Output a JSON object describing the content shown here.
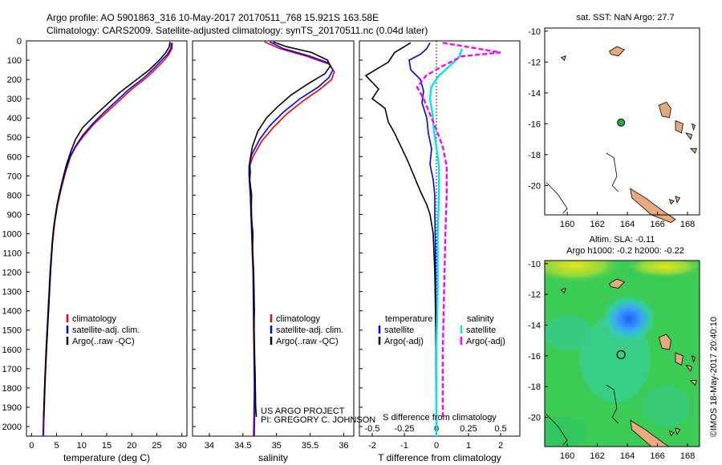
{
  "header": {
    "line1": "Argo profile: AO 5901863_316 10-May-2017 20170511_768 15.921S 163.58E",
    "line2": "Climatology: CARS2009. Satellite-adjusted climatology: synTS_20170511.nc (0.04d later)"
  },
  "colors": {
    "climatology": "#ff0000",
    "satellite": "#0000ff",
    "argo": "#000000",
    "sal_sat": "#00e5ee",
    "sal_argo": "#ff00ff",
    "land": "#e8a97e",
    "argo_marker": "#22aa44"
  },
  "chart_data": [
    {
      "type": "line",
      "id": "temperature",
      "xlabel": "temperature (deg C)",
      "ylabel": "",
      "xlim": [
        -1,
        31
      ],
      "ylim": [
        2050,
        0
      ],
      "xticks": [
        0,
        5,
        10,
        15,
        20,
        25,
        30
      ],
      "yticks": [
        0,
        100,
        200,
        300,
        400,
        500,
        600,
        700,
        800,
        900,
        1000,
        1100,
        1200,
        1300,
        1400,
        1500,
        1600,
        1700,
        1800,
        1900,
        2000
      ],
      "legend": [
        "climatology",
        "satellite-adj. clim.",
        "Argo(..raw -QC)"
      ],
      "series": [
        {
          "name": "climatology",
          "color": "#ff0000",
          "points": [
            [
              28.1,
              10
            ],
            [
              28.0,
              40
            ],
            [
              27.4,
              70
            ],
            [
              26.5,
              100
            ],
            [
              25.0,
              140
            ],
            [
              23.0,
              190
            ],
            [
              20.0,
              250
            ],
            [
              17.5,
              310
            ],
            [
              15.0,
              370
            ],
            [
              12.5,
              430
            ],
            [
              10.5,
              490
            ],
            [
              8.8,
              550
            ],
            [
              7.8,
              600
            ],
            [
              6.8,
              680
            ],
            [
              6.0,
              760
            ],
            [
              5.2,
              850
            ],
            [
              4.6,
              950
            ],
            [
              4.2,
              1050
            ],
            [
              3.8,
              1200
            ],
            [
              3.4,
              1400
            ],
            [
              3.0,
              1600
            ],
            [
              2.7,
              1800
            ],
            [
              2.5,
              1950
            ],
            [
              2.4,
              2050
            ]
          ]
        },
        {
          "name": "satellite-adj. clim.",
          "color": "#0000ff",
          "points": [
            [
              27.9,
              10
            ],
            [
              27.8,
              40
            ],
            [
              27.1,
              70
            ],
            [
              26.0,
              100
            ],
            [
              24.5,
              140
            ],
            [
              22.5,
              190
            ],
            [
              19.5,
              250
            ],
            [
              17.0,
              310
            ],
            [
              14.5,
              370
            ],
            [
              12.2,
              430
            ],
            [
              10.2,
              490
            ],
            [
              8.7,
              550
            ],
            [
              7.7,
              600
            ],
            [
              6.7,
              680
            ],
            [
              5.9,
              760
            ],
            [
              5.1,
              850
            ],
            [
              4.5,
              950
            ],
            [
              4.1,
              1050
            ],
            [
              3.7,
              1200
            ],
            [
              3.3,
              1400
            ],
            [
              2.9,
              1600
            ],
            [
              2.6,
              1800
            ],
            [
              2.4,
              1950
            ],
            [
              2.3,
              2050
            ]
          ]
        },
        {
          "name": "Argo(..raw -QC)",
          "color": "#000000",
          "points": [
            [
              27.6,
              5
            ],
            [
              27.5,
              30
            ],
            [
              26.8,
              60
            ],
            [
              25.5,
              100
            ],
            [
              23.5,
              150
            ],
            [
              20.5,
              210
            ],
            [
              17.5,
              270
            ],
            [
              15.0,
              330
            ],
            [
              12.5,
              390
            ],
            [
              10.2,
              450
            ],
            [
              8.8,
              510
            ],
            [
              7.9,
              570
            ],
            [
              7.0,
              640
            ],
            [
              6.2,
              720
            ],
            [
              5.4,
              810
            ],
            [
              4.8,
              900
            ],
            [
              4.3,
              1000
            ],
            [
              3.9,
              1150
            ],
            [
              3.5,
              1350
            ],
            [
              3.1,
              1550
            ],
            [
              2.7,
              1750
            ],
            [
              2.5,
              1900
            ],
            [
              2.4,
              1950
            ]
          ]
        }
      ]
    },
    {
      "type": "line",
      "id": "salinity",
      "xlabel": "salinity",
      "xlim": [
        33.75,
        36.15
      ],
      "ylim": [
        2050,
        0
      ],
      "xticks": [
        34,
        34.5,
        35,
        35.5,
        36
      ],
      "legend": [
        "climatology",
        "satellite-adj. clim.",
        "Argo(..raw -QC)"
      ],
      "series": [
        {
          "name": "climatology",
          "color": "#ff0000",
          "points": [
            [
              34.82,
              5
            ],
            [
              35.05,
              40
            ],
            [
              35.45,
              80
            ],
            [
              35.78,
              120
            ],
            [
              35.86,
              160
            ],
            [
              35.82,
              200
            ],
            [
              35.65,
              250
            ],
            [
              35.4,
              310
            ],
            [
              35.15,
              380
            ],
            [
              34.95,
              450
            ],
            [
              34.78,
              520
            ],
            [
              34.65,
              600
            ],
            [
              34.6,
              650
            ],
            [
              34.6,
              700
            ],
            [
              34.62,
              800
            ],
            [
              34.64,
              1000
            ],
            [
              34.66,
              1200
            ],
            [
              34.67,
              1500
            ],
            [
              34.68,
              1800
            ],
            [
              34.67,
              2050
            ]
          ]
        },
        {
          "name": "satellite-adj. clim.",
          "color": "#0000ff",
          "points": [
            [
              34.9,
              5
            ],
            [
              35.1,
              40
            ],
            [
              35.5,
              80
            ],
            [
              35.78,
              115
            ],
            [
              35.84,
              150
            ],
            [
              35.78,
              190
            ],
            [
              35.62,
              240
            ],
            [
              35.35,
              300
            ],
            [
              35.1,
              370
            ],
            [
              34.9,
              440
            ],
            [
              34.75,
              510
            ],
            [
              34.63,
              590
            ],
            [
              34.59,
              650
            ],
            [
              34.59,
              700
            ],
            [
              34.61,
              800
            ],
            [
              34.63,
              1000
            ],
            [
              34.65,
              1200
            ],
            [
              34.66,
              1500
            ],
            [
              34.67,
              1800
            ],
            [
              34.66,
              2050
            ]
          ]
        },
        {
          "name": "Argo(..raw -QC)",
          "color": "#000000",
          "points": [
            [
              34.95,
              5
            ],
            [
              35.15,
              30
            ],
            [
              35.52,
              60
            ],
            [
              35.76,
              100
            ],
            [
              35.8,
              130
            ],
            [
              35.72,
              170
            ],
            [
              35.48,
              220
            ],
            [
              35.22,
              280
            ],
            [
              35.02,
              340
            ],
            [
              34.85,
              400
            ],
            [
              34.72,
              470
            ],
            [
              34.64,
              550
            ],
            [
              34.6,
              630
            ],
            [
              34.61,
              680
            ],
            [
              34.6,
              720
            ],
            [
              34.63,
              800
            ],
            [
              34.62,
              900
            ],
            [
              34.65,
              1000
            ],
            [
              34.64,
              1100
            ],
            [
              34.66,
              1200
            ],
            [
              34.67,
              1400
            ],
            [
              34.66,
              1500
            ],
            [
              34.68,
              1700
            ],
            [
              34.69,
              1900
            ],
            [
              34.7,
              1950
            ]
          ]
        }
      ]
    },
    {
      "type": "line",
      "id": "differences",
      "xlabel": "T difference from climatology",
      "xlabel2": "S difference from climatology",
      "xlim_T": [
        -2.4,
        2.6
      ],
      "xticks_T": [
        -2,
        -1,
        0,
        1,
        2
      ],
      "xticks_S": [
        -0.5,
        -0.25,
        0,
        0.25,
        0.5
      ],
      "s_scale_T_per_S": 4,
      "legend_headers": [
        "temperature",
        "salinity"
      ],
      "legend": [
        "satellite",
        "Argo(-adj)",
        "satellite",
        "Argo(-adj)"
      ],
      "series": [
        {
          "name": "satellite",
          "quantity": "temperature",
          "color": "#0000ff",
          "points": [
            [
              -0.2,
              10
            ],
            [
              -0.3,
              40
            ],
            [
              -0.5,
              70
            ],
            [
              -0.85,
              100
            ],
            [
              -0.8,
              150
            ],
            [
              -0.5,
              200
            ],
            [
              -0.4,
              260
            ],
            [
              -0.45,
              320
            ],
            [
              -0.3,
              400
            ],
            [
              -0.25,
              480
            ],
            [
              -0.15,
              560
            ],
            [
              -0.2,
              640
            ],
            [
              -0.1,
              720
            ],
            [
              -0.05,
              800
            ],
            [
              -0.05,
              900
            ],
            [
              -0.03,
              1100
            ],
            [
              -0.02,
              1400
            ],
            [
              -0.01,
              1700
            ],
            [
              0.0,
              2050
            ]
          ]
        },
        {
          "name": "Argo(-adj)",
          "quantity": "temperature",
          "color": "#000000",
          "points": [
            [
              -0.8,
              10
            ],
            [
              -1.3,
              60
            ],
            [
              -1.5,
              110
            ],
            [
              -2.2,
              180
            ],
            [
              -1.8,
              250
            ],
            [
              -2.0,
              300
            ],
            [
              -1.6,
              350
            ],
            [
              -1.5,
              420
            ],
            [
              -1.3,
              480
            ],
            [
              -1.1,
              550
            ],
            [
              -0.9,
              620
            ],
            [
              -0.7,
              700
            ],
            [
              -0.5,
              780
            ],
            [
              -0.3,
              850
            ],
            [
              -0.2,
              900
            ],
            [
              -0.1,
              1000
            ],
            [
              -0.05,
              1200
            ],
            [
              -0.02,
              1500
            ],
            [
              -0.01,
              1800
            ],
            [
              0.0,
              1950
            ]
          ]
        },
        {
          "name": "satellite",
          "quantity": "salinity",
          "color": "#00e5ee",
          "points": [
            [
              0.2,
              40
            ],
            [
              0.18,
              80
            ],
            [
              0.12,
              120
            ],
            [
              0.02,
              180
            ],
            [
              -0.04,
              240
            ],
            [
              -0.05,
              300
            ],
            [
              -0.03,
              380
            ],
            [
              -0.02,
              460
            ],
            [
              0.0,
              550
            ],
            [
              0.02,
              650
            ],
            [
              0.02,
              800
            ],
            [
              0.01,
              1000
            ],
            [
              0.01,
              1300
            ],
            [
              0.0,
              1600
            ],
            [
              0.0,
              2050
            ]
          ]
        },
        {
          "name": "Argo(-adj)",
          "quantity": "salinity",
          "color": "#ff00ff",
          "points": [
            [
              0.05,
              10
            ],
            [
              0.5,
              60
            ],
            [
              0.2,
              80
            ],
            [
              0.05,
              130
            ],
            [
              -0.08,
              180
            ],
            [
              -0.15,
              240
            ],
            [
              -0.1,
              300
            ],
            [
              -0.05,
              380
            ],
            [
              0.0,
              460
            ],
            [
              0.05,
              550
            ],
            [
              0.08,
              650
            ],
            [
              0.08,
              800
            ],
            [
              0.07,
              1000
            ],
            [
              0.06,
              1300
            ],
            [
              0.05,
              1600
            ],
            [
              0.05,
              1950
            ]
          ]
        }
      ]
    },
    {
      "type": "map",
      "id": "sst-map",
      "title": "sat. SST: NaN Argo: 27.7",
      "xlim": [
        158.5,
        168.8
      ],
      "ylim": [
        -21.9,
        -9.8
      ],
      "xticks": [
        160,
        162,
        164,
        166,
        168
      ],
      "yticks": [
        -10,
        -12,
        -14,
        -16,
        -18,
        -20
      ],
      "marker": {
        "lon": 163.58,
        "lat": -15.921
      }
    },
    {
      "type": "heatmap",
      "id": "sla-map",
      "title1": "Altim. SLA: -0.11",
      "title2": "Argo h1000: -0.2 h2000: -0.22",
      "xlim": [
        158.5,
        168.8
      ],
      "ylim": [
        -21.9,
        -9.8
      ],
      "xticks": [
        160,
        162,
        164,
        166,
        168
      ],
      "yticks": [
        -10,
        -12,
        -14,
        -16,
        -18,
        -20
      ],
      "marker": {
        "lon": 163.58,
        "lat": -15.921
      }
    }
  ],
  "annotations": {
    "project": "US ARGO PROJECT",
    "pi": "PI: GREGORY C. JOHNSON",
    "credit": "©IMOS 18-May-2017 20:40:10"
  }
}
